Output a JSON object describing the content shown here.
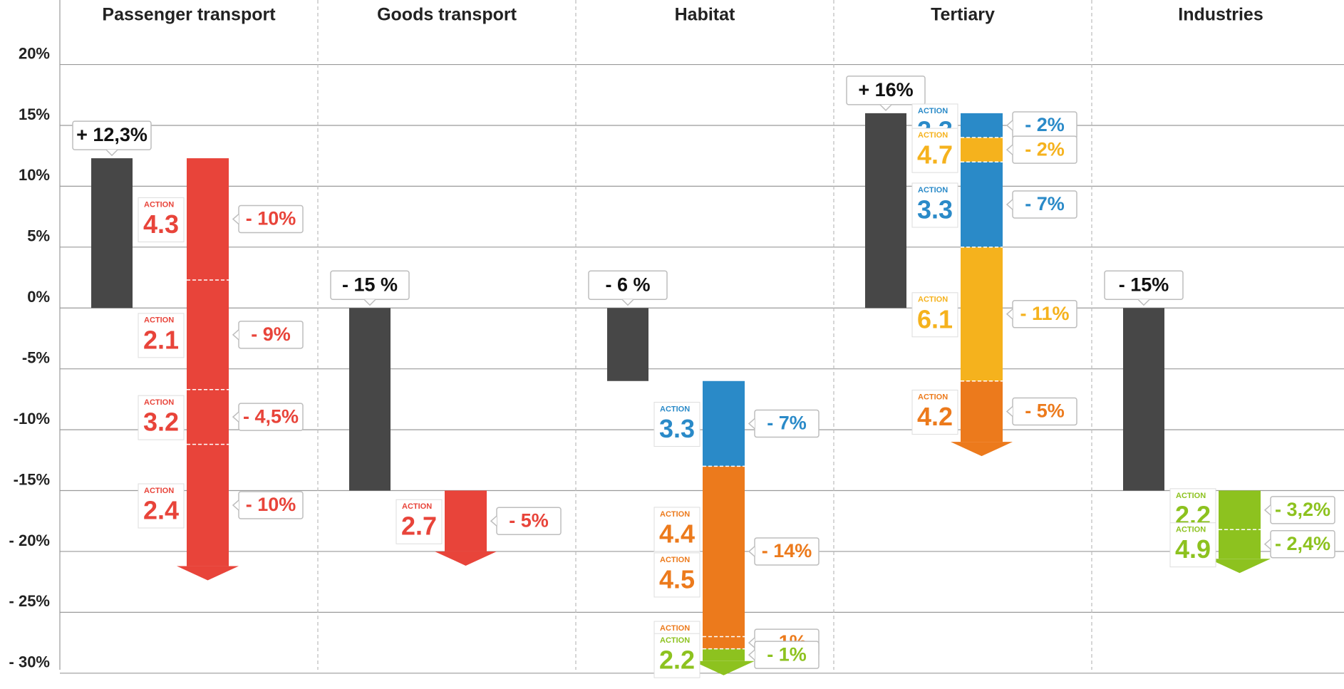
{
  "chart_data": {
    "type": "waterfall",
    "categories": [
      "Passenger transport",
      "Goods transport",
      "Habitat",
      "Tertiary",
      "Industries"
    ],
    "bases": [
      12.3,
      -15,
      -6,
      16,
      -15
    ],
    "base_labels": [
      "+ 12,3%",
      "- 15 %",
      "- 6 %",
      "+ 16%",
      "- 15%"
    ],
    "base_color": "#474747",
    "action_label": "ACTION",
    "actions": [
      [
        {
          "codes": [
            "4.3"
          ],
          "value": -10,
          "value_label": "- 10%",
          "color": "#e8443a"
        },
        {
          "codes": [
            "2.1"
          ],
          "value": -9,
          "value_label": "- 9%",
          "color": "#e8443a"
        },
        {
          "codes": [
            "3.2"
          ],
          "value": -4.5,
          "value_label": "- 4,5%",
          "color": "#e8443a"
        },
        {
          "codes": [
            "2.4"
          ],
          "value": -10,
          "value_label": "- 10%",
          "color": "#e8443a"
        }
      ],
      [
        {
          "codes": [
            "2.7"
          ],
          "value": -5,
          "value_label": "- 5%",
          "color": "#e8443a"
        }
      ],
      [
        {
          "codes": [
            "3.3"
          ],
          "value": -7,
          "value_label": "- 7%",
          "color": "#2a8ac8"
        },
        {
          "codes": [
            "4.4",
            "4.5"
          ],
          "value": -14,
          "value_label": "- 14%",
          "color": "#ec7a1c"
        },
        {
          "codes": [
            "4.2"
          ],
          "value": -1,
          "value_label": "- 1%",
          "color": "#ec7a1c"
        },
        {
          "codes": [
            "2.2"
          ],
          "value": -1,
          "value_label": "- 1%",
          "color": "#8dc21f"
        }
      ],
      [
        {
          "codes": [
            "2.3"
          ],
          "value": -2,
          "value_label": "- 2%",
          "color": "#2a8ac8"
        },
        {
          "codes": [
            "4.7"
          ],
          "value": -2,
          "value_label": "- 2%",
          "color": "#f5b21d"
        },
        {
          "codes": [
            "3.3"
          ],
          "value": -7,
          "value_label": "- 7%",
          "color": "#2a8ac8"
        },
        {
          "codes": [
            "6.1"
          ],
          "value": -11,
          "value_label": "- 11%",
          "color": "#f5b21d"
        },
        {
          "codes": [
            "4.2"
          ],
          "value": -5,
          "value_label": "- 5%",
          "color": "#ec7a1c"
        }
      ],
      [
        {
          "codes": [
            "2.2"
          ],
          "value": -3.2,
          "value_label": "- 3,2%",
          "color": "#8dc21f"
        },
        {
          "codes": [
            "4.9"
          ],
          "value": -2.4,
          "value_label": "- 2,4%",
          "color": "#8dc21f"
        }
      ]
    ],
    "ylim": [
      -31.3,
      25.3
    ],
    "yticks": [
      {
        "value": 20,
        "label": "20%"
      },
      {
        "value": 15,
        "label": "15%"
      },
      {
        "value": 10,
        "label": "10%"
      },
      {
        "value": 5,
        "label": "5%"
      },
      {
        "value": 0,
        "label": "0%"
      },
      {
        "value": -5,
        "label": "-5%"
      },
      {
        "value": -10,
        "label": "-10%"
      },
      {
        "value": -15,
        "label": "-15%"
      },
      {
        "value": -20,
        "label": "- 20%"
      },
      {
        "value": -25,
        "label": "- 25%"
      },
      {
        "value": -30,
        "label": "- 30%"
      }
    ],
    "grid": true
  }
}
